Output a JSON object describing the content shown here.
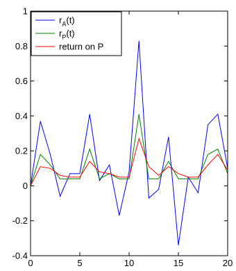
{
  "chart_data": {
    "type": "line",
    "title": "",
    "xlabel": "",
    "ylabel": "",
    "xlim": [
      0,
      20
    ],
    "ylim": [
      -0.4,
      1
    ],
    "xticks": [
      0,
      5,
      10,
      15,
      20
    ],
    "yticks": [
      -0.4,
      -0.2,
      0,
      0.2,
      0.4,
      0.6,
      0.8,
      1
    ],
    "xtick_labels": [
      "0",
      "5",
      "10",
      "15",
      "20"
    ],
    "ytick_labels": [
      "-0.4",
      "-0.2",
      "0",
      "0.2",
      "0.4",
      "0.6",
      "0.8",
      "1"
    ],
    "grid": false,
    "legend_position": "top-left",
    "x": [
      0,
      1,
      2,
      3,
      4,
      5,
      6,
      7,
      8,
      9,
      10,
      11,
      12,
      13,
      14,
      15,
      16,
      17,
      18,
      19,
      20
    ],
    "series": [
      {
        "name": "r_A(t)",
        "legend_main": "r",
        "legend_sub": "A",
        "legend_tail": "(t)",
        "color": "#0000ff",
        "values": [
          0.0,
          0.37,
          0.18,
          -0.06,
          0.07,
          0.07,
          0.41,
          0.03,
          0.12,
          -0.17,
          0.08,
          0.83,
          -0.07,
          -0.02,
          0.28,
          -0.34,
          0.05,
          -0.04,
          0.35,
          0.41,
          0.1
        ]
      },
      {
        "name": "r_P(t)",
        "legend_main": "r",
        "legend_sub": "P",
        "legend_tail": "(t)",
        "color": "#008000",
        "values": [
          0.0,
          0.18,
          0.12,
          0.04,
          0.04,
          0.04,
          0.21,
          0.04,
          0.07,
          0.04,
          0.04,
          0.41,
          0.04,
          0.04,
          0.14,
          0.04,
          0.04,
          0.04,
          0.18,
          0.21,
          0.07
        ]
      },
      {
        "name": "return on P",
        "legend_main": "return on P",
        "legend_sub": "",
        "legend_tail": "",
        "color": "#ff0000",
        "values": [
          0.0,
          0.11,
          0.1,
          0.06,
          0.05,
          0.05,
          0.14,
          0.08,
          0.07,
          0.05,
          0.05,
          0.27,
          0.11,
          0.06,
          0.11,
          0.07,
          0.05,
          0.05,
          0.12,
          0.18,
          0.09
        ]
      }
    ]
  }
}
